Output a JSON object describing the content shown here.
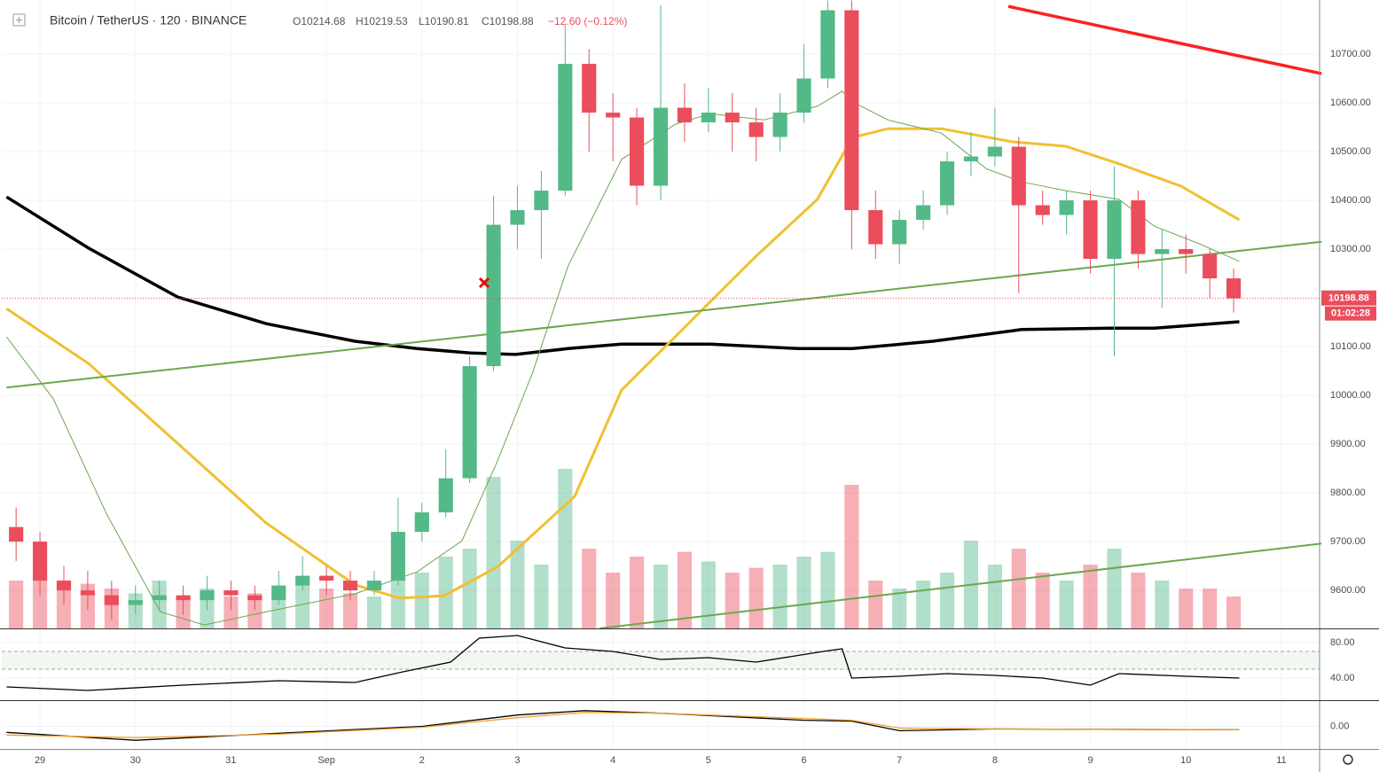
{
  "header": {
    "symbol": "Bitcoin / TetherUS · 120 · BINANCE",
    "open": "O10214.68",
    "high": "H10219.53",
    "low": "L10190.81",
    "close": "C10198.88",
    "change": "−12.60 (−0.12%)"
  },
  "chart_data": [
    {
      "type": "candlestick",
      "up_color": "#53b987",
      "down_color": "#eb4d5c",
      "xlim": [
        -0.4,
        13.4
      ],
      "ylim": [
        9522,
        10811
      ],
      "xticks": [
        {
          "value": 0,
          "label": "29"
        },
        {
          "value": 1,
          "label": "30"
        },
        {
          "value": 2,
          "label": "31"
        },
        {
          "value": 3,
          "label": "Sep"
        },
        {
          "value": 4,
          "label": "2"
        },
        {
          "value": 5,
          "label": "3"
        },
        {
          "value": 6,
          "label": "4"
        },
        {
          "value": 7,
          "label": "5"
        },
        {
          "value": 8,
          "label": "6"
        },
        {
          "value": 9,
          "label": "7"
        },
        {
          "value": 10,
          "label": "8"
        },
        {
          "value": 11,
          "label": "9"
        },
        {
          "value": 12,
          "label": "10"
        },
        {
          "value": 13,
          "label": "11"
        }
      ],
      "yticks": [
        {
          "value": 9600,
          "label": "9600.00"
        },
        {
          "value": 9700,
          "label": "9700.00"
        },
        {
          "value": 9800,
          "label": "9800.00"
        },
        {
          "value": 9900,
          "label": "9900.00"
        },
        {
          "value": 10000,
          "label": "10000.00"
        },
        {
          "value": 10100,
          "label": "10100.00"
        },
        {
          "value": 10200,
          "label": "10200.00"
        },
        {
          "value": 10300,
          "label": "10300.00"
        },
        {
          "value": 10400,
          "label": "10400.00"
        },
        {
          "value": 10500,
          "label": "10500.00"
        },
        {
          "value": 10600,
          "label": "10600.00"
        },
        {
          "value": 10700,
          "label": "10700.00"
        }
      ],
      "x": [
        -0.25,
        0,
        0.25,
        0.5,
        0.75,
        1,
        1.25,
        1.5,
        1.75,
        2,
        2.25,
        2.5,
        2.75,
        3,
        3.25,
        3.5,
        3.75,
        4,
        4.25,
        4.5,
        4.75,
        5,
        5.25,
        5.5,
        5.75,
        6,
        6.25,
        6.5,
        6.75,
        7,
        7.25,
        7.5,
        7.75,
        8,
        8.25,
        8.5,
        8.75,
        9,
        9.25,
        9.5,
        9.75,
        10,
        10.25,
        10.5,
        10.75,
        11,
        11.25,
        11.5,
        11.75,
        12,
        12.25,
        12.5
      ],
      "open": [
        9730,
        9700,
        9620,
        9600,
        9590,
        9570,
        9580,
        9590,
        9580,
        9600,
        9590,
        9580,
        9610,
        9630,
        9620,
        9600,
        9620,
        9720,
        9760,
        9830,
        10060,
        10350,
        10380,
        10420,
        10680,
        10580,
        10570,
        10430,
        10590,
        10560,
        10580,
        10560,
        10530,
        10580,
        10650,
        10790,
        10380,
        10310,
        10360,
        10390,
        10480,
        10490,
        10510,
        10390,
        10370,
        10400,
        10280,
        10400,
        10290,
        10300,
        10290,
        10240
      ],
      "high": [
        9770,
        9720,
        9650,
        9640,
        9620,
        9610,
        9620,
        9610,
        9630,
        9620,
        9610,
        9640,
        9670,
        9650,
        9640,
        9640,
        9790,
        9780,
        9890,
        10080,
        10410,
        10430,
        10460,
        10760,
        10710,
        10620,
        10590,
        10800,
        10640,
        10630,
        10620,
        10590,
        10620,
        10720,
        10810,
        10810,
        10420,
        10380,
        10420,
        10500,
        10540,
        10590,
        10530,
        10420,
        10420,
        10420,
        10470,
        10420,
        10340,
        10330,
        10300,
        10260
      ],
      "low": [
        9660,
        9590,
        9570,
        9560,
        9540,
        9550,
        9560,
        9550,
        9560,
        9560,
        9560,
        9570,
        9600,
        9590,
        9580,
        9590,
        9610,
        9700,
        9750,
        9820,
        10050,
        10300,
        10280,
        10410,
        10500,
        10480,
        10390,
        10400,
        10520,
        10540,
        10500,
        10480,
        10500,
        10560,
        10630,
        10300,
        10280,
        10270,
        10340,
        10370,
        10450,
        10470,
        10210,
        10350,
        10330,
        10250,
        10080,
        10260,
        10180,
        10250,
        10200,
        10170
      ],
      "close": [
        9700,
        9620,
        9600,
        9590,
        9570,
        9580,
        9590,
        9580,
        9600,
        9590,
        9580,
        9610,
        9630,
        9620,
        9600,
        9620,
        9720,
        9760,
        9830,
        10060,
        10350,
        10380,
        10420,
        10680,
        10580,
        10570,
        10430,
        10590,
        10560,
        10580,
        10560,
        10530,
        10580,
        10650,
        10790,
        10380,
        10310,
        10360,
        10390,
        10480,
        10490,
        10510,
        10390,
        10370,
        10400,
        10280,
        10400,
        10290,
        10300,
        10290,
        10240,
        10199
      ],
      "vlim": [
        0,
        100
      ],
      "volume": [
        30,
        35,
        30,
        28,
        25,
        22,
        30,
        20,
        25,
        20,
        22,
        18,
        28,
        25,
        22,
        20,
        30,
        35,
        45,
        50,
        95,
        55,
        40,
        100,
        50,
        35,
        45,
        40,
        48,
        42,
        35,
        38,
        40,
        45,
        48,
        90,
        30,
        25,
        30,
        35,
        55,
        40,
        50,
        35,
        30,
        40,
        50,
        35,
        30,
        25,
        25,
        20
      ],
      "overlays": [
        {
          "color": "#000000",
          "width": 3.5,
          "x": [
            -0.35,
            0.51,
            1.44,
            2.37,
            3.3,
            3.95,
            4.51,
            4.98,
            5.53,
            6.09,
            7.02,
            7.95,
            8.51,
            9.35,
            10.28,
            11.21,
            11.67,
            12.56
          ],
          "values": [
            10407,
            10302,
            10202,
            10147,
            10111,
            10096,
            10087,
            10084,
            10096,
            10105,
            10105,
            10096,
            10096,
            10111,
            10135,
            10138,
            10138,
            10151
          ]
        },
        {
          "color": "#f0c030",
          "width": 3,
          "x": [
            -0.35,
            0.51,
            1.44,
            2.37,
            3.3,
            3.77,
            4.23,
            4.79,
            5.6,
            6.09,
            6.65,
            7.49,
            8.14,
            8.51,
            8.88,
            9.44,
            10.19,
            10.74,
            11.3,
            11.95,
            12.56
          ],
          "values": [
            10178,
            10065,
            9902,
            9738,
            9611,
            9584,
            9589,
            9648,
            9793,
            10011,
            10120,
            10284,
            10402,
            10529,
            10547,
            10547,
            10520,
            10511,
            10475,
            10429,
            10360
          ]
        },
        {
          "color": "#6aa84f",
          "width": 1,
          "x": [
            -0.35,
            0.14,
            0.7,
            1.26,
            1.72,
            2.37,
            3.3,
            3.95,
            4.42,
            4.79,
            5.16,
            5.53,
            6.09,
            6.65,
            7.02,
            7.58,
            8.14,
            8.4,
            8.51,
            8.88,
            9.44,
            9.91,
            10.28,
            10.74,
            11.3,
            11.67,
            12.14,
            12.56
          ],
          "values": [
            10120,
            9993,
            9756,
            9556,
            9529,
            9556,
            9593,
            9638,
            9702,
            9865,
            10047,
            10265,
            10484,
            10556,
            10578,
            10565,
            10593,
            10624,
            10602,
            10565,
            10538,
            10465,
            10438,
            10420,
            10402,
            10347,
            10311,
            10275
          ]
        },
        {
          "color": "#6aa84f",
          "width": 2,
          "x": [
            -0.35,
            13.42
          ],
          "values": [
            10016,
            10315
          ]
        },
        {
          "color": "#6aa84f",
          "width": 2,
          "x": [
            5.86,
            13.42
          ],
          "values": [
            9522,
            9696
          ]
        },
        {
          "color": "#ff2020",
          "width": 3.5,
          "x": [
            10.14,
            13.42
          ],
          "values": [
            10798,
            10660
          ]
        }
      ],
      "last_price": 10198.88,
      "countdown": "01:02:28"
    },
    {
      "type": "line",
      "color": "#000000",
      "xlim": [
        -0.4,
        13.4
      ],
      "ylim": [
        15,
        95
      ],
      "band": [
        50,
        70
      ],
      "yticks": [
        {
          "value": 40,
          "label": "40.00"
        },
        {
          "value": 80,
          "label": "80.00"
        }
      ],
      "x": [
        -0.35,
        0.5,
        1.5,
        2.5,
        3.3,
        3.8,
        4.3,
        4.6,
        5,
        5.5,
        6,
        6.5,
        7,
        7.5,
        8.2,
        8.4,
        8.5,
        9,
        9.5,
        10,
        10.5,
        11,
        11.3,
        12,
        12.56
      ],
      "values": [
        30,
        26,
        32,
        37,
        35,
        47,
        58,
        85,
        88,
        74,
        70,
        61,
        63,
        58,
        70,
        73,
        40,
        42,
        45,
        43,
        40,
        32,
        45,
        42,
        40
      ]
    },
    {
      "type": "line",
      "xlim": [
        -0.4,
        13.4
      ],
      "ylim": [
        -26,
        29
      ],
      "yticks": [
        {
          "value": 0,
          "label": "0.00"
        }
      ],
      "series": [
        {
          "color": "#000000",
          "x": [
            -0.35,
            1,
            2.5,
            4,
            5,
            5.7,
            6.5,
            8,
            8.5,
            9,
            10,
            12.56
          ],
          "values": [
            -7,
            -16,
            -8,
            0,
            13,
            18,
            15,
            7,
            6,
            -5,
            -3,
            -4
          ]
        },
        {
          "color": "#f0a030",
          "x": [
            -0.35,
            1,
            2.5,
            4,
            5,
            5.7,
            6.5,
            8,
            8.5,
            9,
            10,
            12.56
          ],
          "values": [
            -10,
            -13,
            -9,
            -1,
            10,
            16,
            15,
            9,
            7,
            -2,
            -3,
            -4
          ]
        }
      ]
    }
  ]
}
